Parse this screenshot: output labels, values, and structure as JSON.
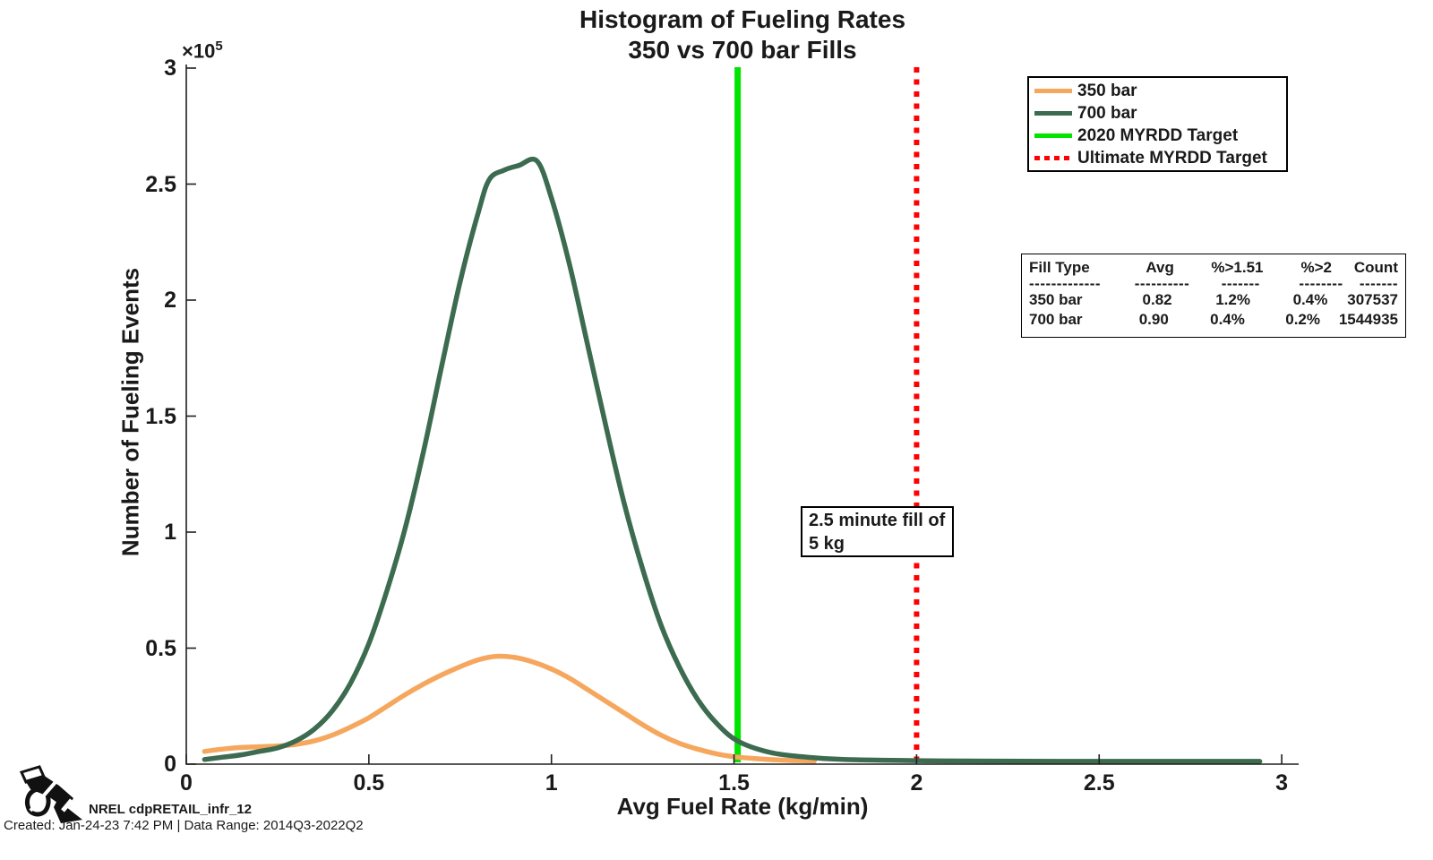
{
  "title": {
    "line1": "Histogram of Fueling Rates",
    "line2": "350 vs 700 bar Fills"
  },
  "axes": {
    "x_label": "Avg Fuel Rate (kg/min)",
    "y_label": "Number of Fueling Events",
    "y_scale_base": "×10",
    "y_scale_exp": "5",
    "x_ticks": [
      "0",
      "0.5",
      "1",
      "1.5",
      "2",
      "2.5",
      "3"
    ],
    "y_ticks": [
      "0",
      "0.5",
      "1",
      "1.5",
      "2",
      "2.5",
      "3"
    ]
  },
  "legend": {
    "items": [
      {
        "label": "350 bar",
        "color": "#F6A75E",
        "style": "solid"
      },
      {
        "label": "700 bar",
        "color": "#3C6B50",
        "style": "solid"
      },
      {
        "label": "2020 MYRDD Target",
        "color": "#00E400",
        "style": "solid"
      },
      {
        "label": "Ultimate MYRDD Target",
        "color": "#FF0000",
        "style": "dotted"
      }
    ]
  },
  "stats_table": {
    "headers": [
      "Fill Type",
      "Avg",
      "%>1.51",
      "%>2",
      "Count"
    ],
    "dashes": [
      "-------------",
      "----------",
      "-------",
      "--------",
      "-------"
    ],
    "rows": [
      [
        "350 bar",
        "0.82",
        "1.2%",
        "0.4%",
        "307537"
      ],
      [
        "700 bar",
        "0.90",
        "0.4%",
        "0.2%",
        "1544935"
      ]
    ]
  },
  "annotation": {
    "line1": "2.5 minute fill of",
    "line2": "5 kg"
  },
  "footer": {
    "brand": "NREL cdpRETAIL_infr_12",
    "created": "Created: Jan-24-23  7:42 PM | Data Range: 2014Q3-2022Q2"
  },
  "colors": {
    "bar350": "#F6A75E",
    "bar700": "#3C6B50",
    "target2020": "#00E400",
    "targetUltimate": "#FF0000",
    "axis": "#1f1f1f"
  },
  "chart_data": {
    "type": "line",
    "title": "Histogram of Fueling Rates — 350 vs 700 bar Fills",
    "xlabel": "Avg Fuel Rate (kg/min)",
    "ylabel": "Number of Fueling Events",
    "y_multiplier": 100000,
    "xlim": [
      0,
      3.05
    ],
    "ylim": [
      0,
      300000
    ],
    "x_tick_values": [
      0,
      0.5,
      1,
      1.5,
      2,
      2.5,
      3
    ],
    "y_tick_values": [
      0,
      50000,
      100000,
      150000,
      200000,
      250000,
      300000
    ],
    "grid": false,
    "legend_position": "upper right",
    "series": [
      {
        "name": "350 bar",
        "color": "#F6A75E",
        "points": [
          [
            0.05,
            5500
          ],
          [
            0.1,
            6500
          ],
          [
            0.15,
            7200
          ],
          [
            0.2,
            7500
          ],
          [
            0.25,
            7800
          ],
          [
            0.3,
            8500
          ],
          [
            0.35,
            10000
          ],
          [
            0.4,
            12500
          ],
          [
            0.45,
            16000
          ],
          [
            0.5,
            20000
          ],
          [
            0.55,
            25000
          ],
          [
            0.6,
            30000
          ],
          [
            0.65,
            34500
          ],
          [
            0.7,
            38500
          ],
          [
            0.75,
            42000
          ],
          [
            0.8,
            45000
          ],
          [
            0.85,
            46500
          ],
          [
            0.9,
            46000
          ],
          [
            0.95,
            44000
          ],
          [
            1.0,
            41000
          ],
          [
            1.05,
            37000
          ],
          [
            1.1,
            32000
          ],
          [
            1.15,
            27000
          ],
          [
            1.2,
            22000
          ],
          [
            1.25,
            17000
          ],
          [
            1.3,
            12500
          ],
          [
            1.35,
            9000
          ],
          [
            1.4,
            6500
          ],
          [
            1.45,
            4500
          ],
          [
            1.5,
            3200
          ],
          [
            1.55,
            2500
          ],
          [
            1.62,
            1800
          ],
          [
            1.72,
            1300
          ]
        ]
      },
      {
        "name": "700 bar",
        "color": "#3C6B50",
        "points": [
          [
            0.05,
            2000
          ],
          [
            0.1,
            3000
          ],
          [
            0.15,
            4000
          ],
          [
            0.2,
            5500
          ],
          [
            0.25,
            7000
          ],
          [
            0.3,
            10000
          ],
          [
            0.35,
            15000
          ],
          [
            0.4,
            23000
          ],
          [
            0.45,
            35000
          ],
          [
            0.5,
            52000
          ],
          [
            0.55,
            75000
          ],
          [
            0.6,
            102000
          ],
          [
            0.65,
            135000
          ],
          [
            0.7,
            172000
          ],
          [
            0.75,
            208000
          ],
          [
            0.8,
            238000
          ],
          [
            0.83,
            252000
          ],
          [
            0.87,
            256000
          ],
          [
            0.91,
            258000
          ],
          [
            0.96,
            260000
          ],
          [
            1.0,
            244000
          ],
          [
            1.05,
            215000
          ],
          [
            1.1,
            180000
          ],
          [
            1.15,
            145000
          ],
          [
            1.2,
            112000
          ],
          [
            1.25,
            84000
          ],
          [
            1.3,
            60000
          ],
          [
            1.35,
            42000
          ],
          [
            1.4,
            28000
          ],
          [
            1.45,
            18000
          ],
          [
            1.51,
            10000
          ],
          [
            1.6,
            5000
          ],
          [
            1.7,
            3000
          ],
          [
            1.8,
            2000
          ],
          [
            2.0,
            1500
          ],
          [
            2.2,
            1300
          ],
          [
            2.5,
            1200
          ],
          [
            2.8,
            1200
          ],
          [
            2.94,
            1200
          ]
        ]
      }
    ],
    "target_lines": [
      {
        "name": "2020 MYRDD Target",
        "x": 1.51,
        "color": "#00E400",
        "style": "solid"
      },
      {
        "name": "Ultimate MYRDD Target",
        "x": 2.0,
        "color": "#FF0000",
        "style": "dotted"
      }
    ],
    "stats_annotation": {
      "headers": [
        "Fill Type",
        "Avg",
        "%>1.51",
        "%>2",
        "Count"
      ],
      "rows": [
        {
          "fill_type": "350 bar",
          "avg": 0.82,
          "pct_gt_1_51": "1.2%",
          "pct_gt_2": "0.4%",
          "count": 307537
        },
        {
          "fill_type": "700 bar",
          "avg": 0.9,
          "pct_gt_1_51": "0.4%",
          "pct_gt_2": "0.2%",
          "count": 1544935
        }
      ]
    },
    "text_annotation": "2.5 minute fill of 5 kg"
  }
}
